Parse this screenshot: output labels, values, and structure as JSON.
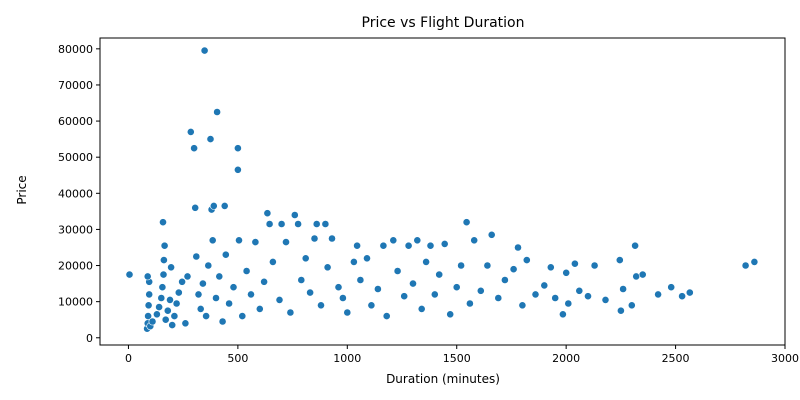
{
  "chart_data": {
    "type": "scatter",
    "title": "Price vs Flight Duration",
    "xlabel": "Duration (minutes)",
    "ylabel": "Price",
    "xlim": [
      -130,
      3000
    ],
    "ylim": [
      -2000,
      83000
    ],
    "xticks": [
      0,
      500,
      1000,
      1500,
      2000,
      2500,
      3000
    ],
    "yticks": [
      0,
      10000,
      20000,
      30000,
      40000,
      50000,
      60000,
      70000,
      80000
    ],
    "grid": false,
    "legend": "none",
    "marker_color": "#1f77b4",
    "points": [
      [
        5,
        17500
      ],
      [
        85,
        2500
      ],
      [
        88,
        4000
      ],
      [
        90,
        6000
      ],
      [
        92,
        9000
      ],
      [
        95,
        12000
      ],
      [
        95,
        15500
      ],
      [
        88,
        17000
      ],
      [
        100,
        3200
      ],
      [
        110,
        4500
      ],
      [
        130,
        6500
      ],
      [
        140,
        8500
      ],
      [
        150,
        11000
      ],
      [
        155,
        14000
      ],
      [
        160,
        17500
      ],
      [
        162,
        21500
      ],
      [
        165,
        25500
      ],
      [
        158,
        32000
      ],
      [
        170,
        5000
      ],
      [
        180,
        7500
      ],
      [
        190,
        10500
      ],
      [
        195,
        19500
      ],
      [
        200,
        3500
      ],
      [
        210,
        6000
      ],
      [
        220,
        9500
      ],
      [
        230,
        12500
      ],
      [
        245,
        15500
      ],
      [
        260,
        4000
      ],
      [
        270,
        17000
      ],
      [
        285,
        57000
      ],
      [
        300,
        52500
      ],
      [
        305,
        36000
      ],
      [
        310,
        22500
      ],
      [
        320,
        12000
      ],
      [
        330,
        8000
      ],
      [
        340,
        15000
      ],
      [
        348,
        79500
      ],
      [
        355,
        6000
      ],
      [
        365,
        20000
      ],
      [
        375,
        55000
      ],
      [
        380,
        35500
      ],
      [
        385,
        27000
      ],
      [
        390,
        36500
      ],
      [
        400,
        11000
      ],
      [
        405,
        62500
      ],
      [
        415,
        17000
      ],
      [
        430,
        4500
      ],
      [
        440,
        36500
      ],
      [
        445,
        23000
      ],
      [
        460,
        9500
      ],
      [
        480,
        14000
      ],
      [
        500,
        46500
      ],
      [
        500,
        52500
      ],
      [
        505,
        27000
      ],
      [
        520,
        6000
      ],
      [
        540,
        18500
      ],
      [
        560,
        12000
      ],
      [
        580,
        26500
      ],
      [
        600,
        8000
      ],
      [
        620,
        15500
      ],
      [
        635,
        34500
      ],
      [
        645,
        31500
      ],
      [
        660,
        21000
      ],
      [
        690,
        10500
      ],
      [
        700,
        31500
      ],
      [
        720,
        26500
      ],
      [
        740,
        7000
      ],
      [
        760,
        34000
      ],
      [
        775,
        31500
      ],
      [
        790,
        16000
      ],
      [
        810,
        22000
      ],
      [
        830,
        12500
      ],
      [
        850,
        27500
      ],
      [
        860,
        31500
      ],
      [
        880,
        9000
      ],
      [
        900,
        31500
      ],
      [
        910,
        19500
      ],
      [
        930,
        27500
      ],
      [
        960,
        14000
      ],
      [
        980,
        11000
      ],
      [
        1000,
        7000
      ],
      [
        1030,
        21000
      ],
      [
        1045,
        25500
      ],
      [
        1060,
        16000
      ],
      [
        1090,
        22000
      ],
      [
        1110,
        9000
      ],
      [
        1140,
        13500
      ],
      [
        1165,
        25500
      ],
      [
        1180,
        6000
      ],
      [
        1210,
        27000
      ],
      [
        1230,
        18500
      ],
      [
        1260,
        11500
      ],
      [
        1280,
        25500
      ],
      [
        1300,
        15000
      ],
      [
        1320,
        27000
      ],
      [
        1340,
        8000
      ],
      [
        1360,
        21000
      ],
      [
        1380,
        25500
      ],
      [
        1400,
        12000
      ],
      [
        1420,
        17500
      ],
      [
        1445,
        26000
      ],
      [
        1470,
        6500
      ],
      [
        1500,
        14000
      ],
      [
        1520,
        20000
      ],
      [
        1545,
        32000
      ],
      [
        1560,
        9500
      ],
      [
        1580,
        27000
      ],
      [
        1610,
        13000
      ],
      [
        1640,
        20000
      ],
      [
        1660,
        28500
      ],
      [
        1690,
        11000
      ],
      [
        1720,
        16000
      ],
      [
        1760,
        19000
      ],
      [
        1780,
        25000
      ],
      [
        1800,
        9000
      ],
      [
        1820,
        21500
      ],
      [
        1860,
        12000
      ],
      [
        1900,
        14500
      ],
      [
        1930,
        19500
      ],
      [
        1950,
        11000
      ],
      [
        1985,
        6500
      ],
      [
        2000,
        18000
      ],
      [
        2010,
        9500
      ],
      [
        2040,
        20500
      ],
      [
        2060,
        13000
      ],
      [
        2100,
        11500
      ],
      [
        2130,
        20000
      ],
      [
        2180,
        10500
      ],
      [
        2245,
        21500
      ],
      [
        2250,
        7500
      ],
      [
        2260,
        13500
      ],
      [
        2300,
        9000
      ],
      [
        2315,
        25500
      ],
      [
        2320,
        17000
      ],
      [
        2350,
        17500
      ],
      [
        2420,
        12000
      ],
      [
        2480,
        14000
      ],
      [
        2530,
        11500
      ],
      [
        2565,
        12500
      ],
      [
        2820,
        20000
      ],
      [
        2860,
        21000
      ]
    ]
  }
}
